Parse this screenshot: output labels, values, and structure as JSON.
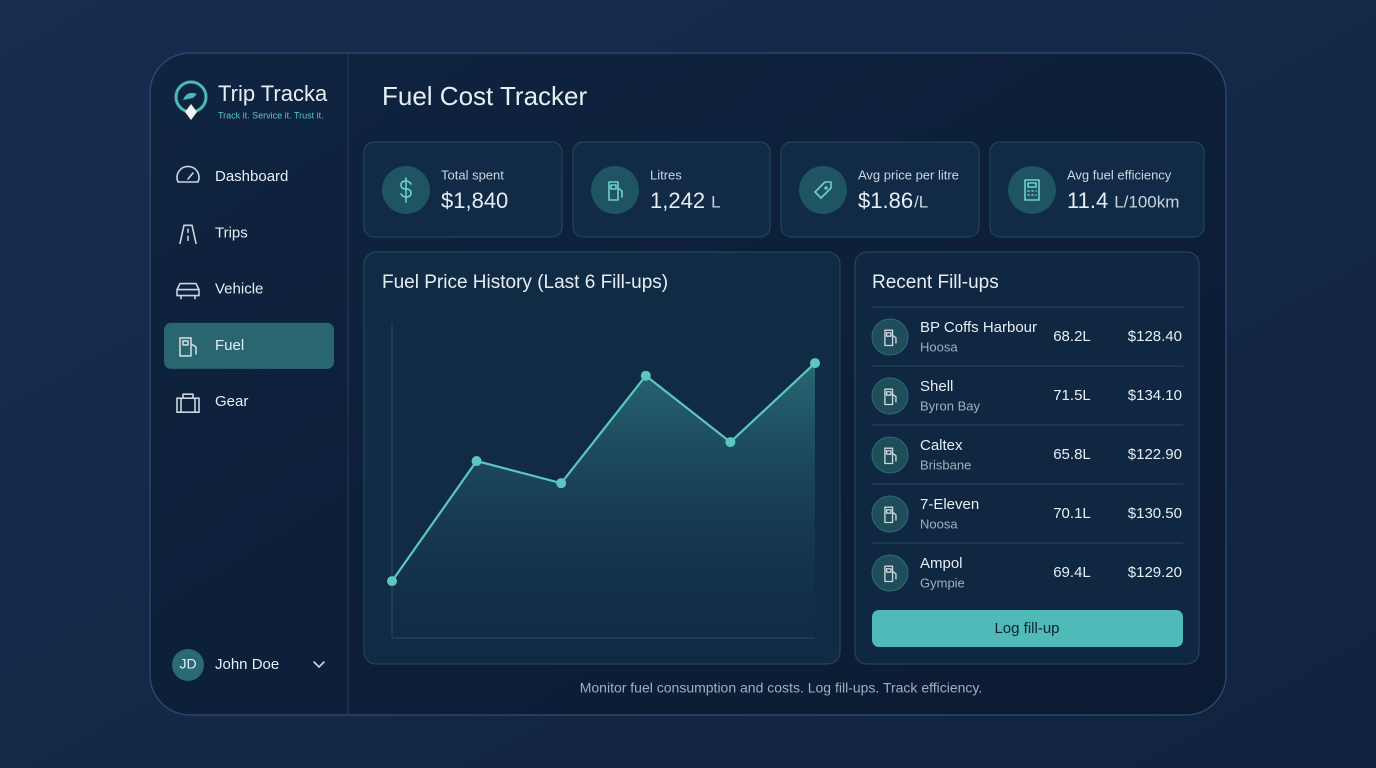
{
  "brand": {
    "name": "Trip Tracka",
    "tagline": "Track it. Service it. Trust it."
  },
  "nav": [
    "Dashboard",
    "Trips",
    "Vehicle",
    "Fuel",
    "Gear"
  ],
  "active_nav": 3,
  "user": {
    "initials": "JD",
    "name": "John Doe"
  },
  "page_title": "Fuel Cost Tracker",
  "stats": [
    {
      "label": "Total spent",
      "value": "$1,840"
    },
    {
      "label": "Litres",
      "value": "1,242",
      "unit": "L"
    },
    {
      "label": "Avg price per litre",
      "value": "$1.86",
      "unit": "/L"
    },
    {
      "label": "Avg fuel efficiency",
      "value": "11.4",
      "unit": "L/100km"
    }
  ],
  "chart_data": {
    "type": "line",
    "title": "Fuel Price History (Last 6 Fill-ups)",
    "values": [
      18,
      56,
      49,
      83,
      62,
      87
    ],
    "ylim": [
      0,
      100
    ],
    "color": "#5cc6c2"
  },
  "recent": {
    "title": "Recent Fill-ups",
    "rows": [
      {
        "station": "BP Coffs Harbour",
        "location": "Hoosa",
        "litres": "68.2L",
        "cost": "$128.40"
      },
      {
        "station": "Shell",
        "location": "Byron Bay",
        "litres": "71.5L",
        "cost": "$134.10"
      },
      {
        "station": "Caltex",
        "location": "Brisbane",
        "litres": "65.8L",
        "cost": "$122.90"
      },
      {
        "station": "7-Eleven",
        "location": "Noosa",
        "litres": "70.1L",
        "cost": "$130.50"
      },
      {
        "station": "Ampol",
        "location": "Gympie",
        "litres": "69.4L",
        "cost": "$129.20"
      }
    ],
    "button": "Log fill-up"
  },
  "footer": "Monitor fuel consumption and costs. Log fill-ups. Track efficiency."
}
